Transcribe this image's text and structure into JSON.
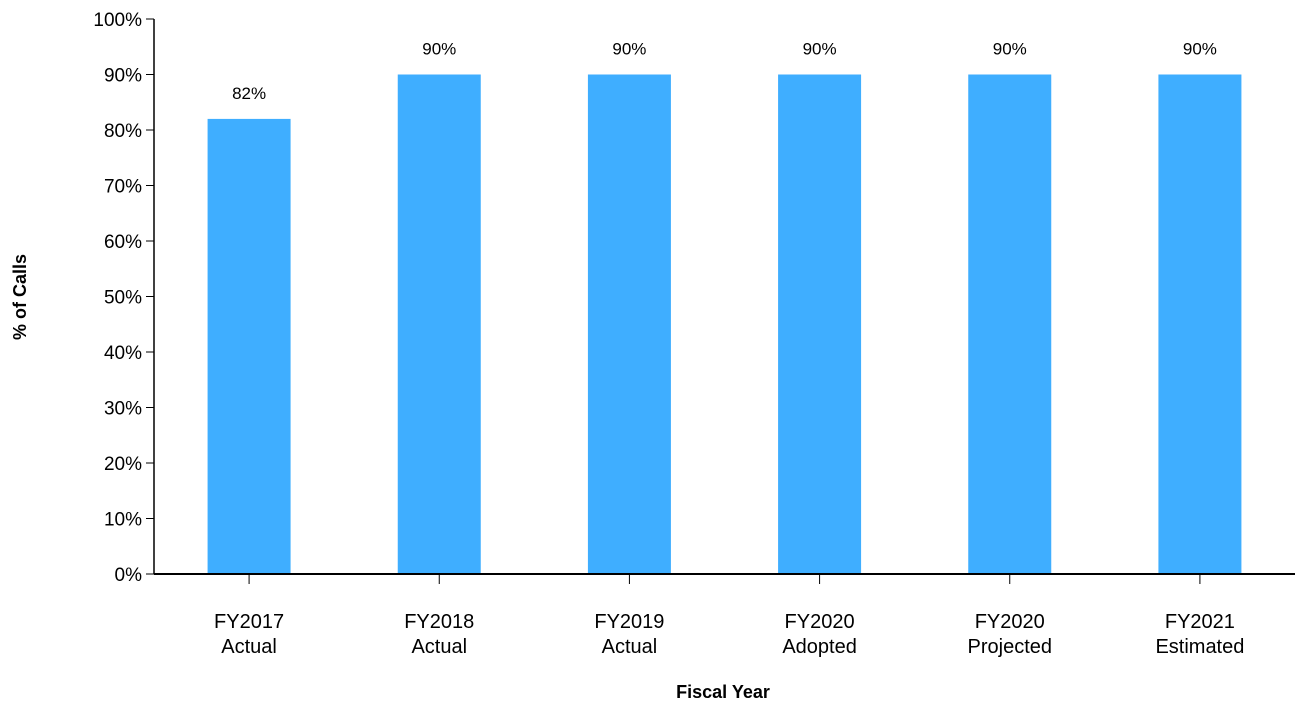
{
  "colors": {
    "bar": "#3FAEFF",
    "axis": "#000000"
  },
  "chart_data": {
    "type": "bar",
    "title": "",
    "xlabel": "Fiscal Year",
    "ylabel": "% of Calls",
    "ylim": [
      0,
      100
    ],
    "y_ticks": [
      "0%",
      "10%",
      "20%",
      "30%",
      "40%",
      "50%",
      "60%",
      "70%",
      "80%",
      "90%",
      "100%"
    ],
    "grid": false,
    "legend": "none",
    "categories": [
      [
        "FY2017",
        "Actual"
      ],
      [
        "FY2018",
        "Actual"
      ],
      [
        "FY2019",
        "Actual"
      ],
      [
        "FY2020",
        "Adopted"
      ],
      [
        "FY2020",
        "Projected"
      ],
      [
        "FY2021",
        "Estimated"
      ]
    ],
    "values": [
      82,
      90,
      90,
      90,
      90,
      90
    ],
    "data_labels": [
      "82%",
      "90%",
      "90%",
      "90%",
      "90%",
      "90%"
    ]
  }
}
